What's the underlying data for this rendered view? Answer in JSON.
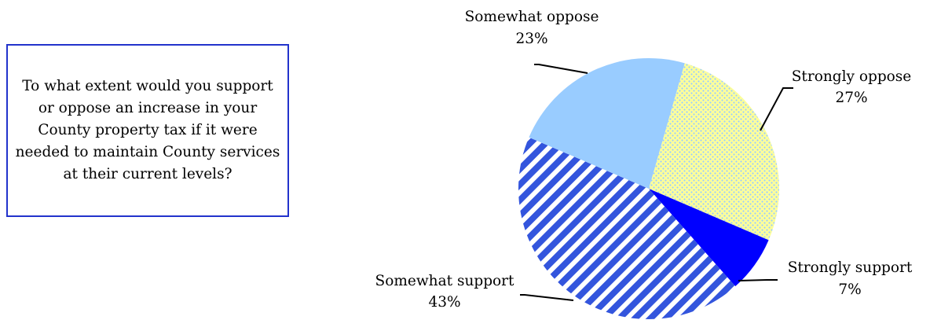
{
  "question": "To what extent would you support or oppose an increase in your County property tax if it were needed to maintain County services at their current levels?",
  "chart_data": {
    "type": "pie",
    "title": "",
    "slices": [
      {
        "label": "Strongly oppose",
        "value": 27,
        "value_label": "27%",
        "color": "#ffff99",
        "pattern": "dots",
        "pattern_color": "#99ccff"
      },
      {
        "label": "Strongly support",
        "value": 7,
        "value_label": "7%",
        "color": "#0000ff",
        "pattern": "solid"
      },
      {
        "label": "Somewhat support",
        "value": 43,
        "value_label": "43%",
        "color": "#ffffff",
        "pattern": "diagonal-stripes",
        "pattern_color": "#3355dd"
      },
      {
        "label": "Somewhat oppose",
        "value": 23,
        "value_label": "23%",
        "color": "#99ccff",
        "pattern": "solid"
      }
    ],
    "start_angle_deg": 16,
    "direction": "clockwise"
  }
}
